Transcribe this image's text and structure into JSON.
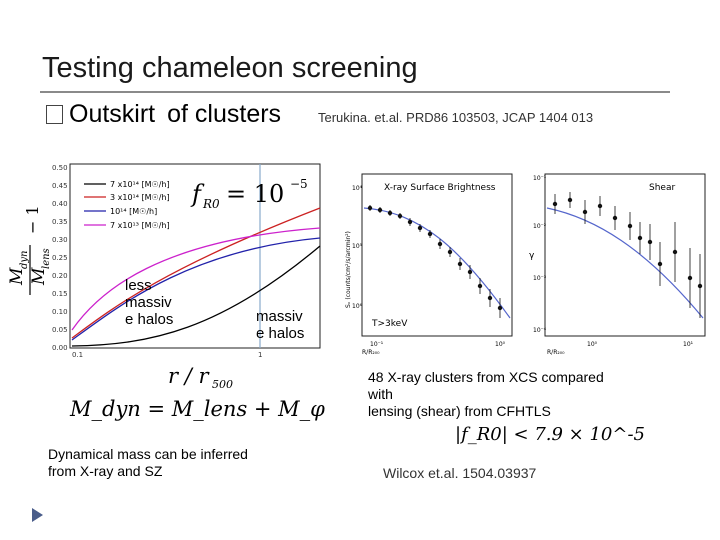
{
  "slide": {
    "title": "Testing chameleon screening",
    "bullet": {
      "word1": "Outskirt",
      "word2": "of clusters"
    },
    "ref_top": "Terukina. et.al.  PRD86 103503,  JCAP 1404 013",
    "note_left": "less\nmassiv\ne halos",
    "note_right": "massiv\ne halos",
    "formula_dyn": "M_dyn = M_lens + M_φ",
    "caption_left_1": "Dynamical mass can be inferred",
    "caption_left_2": "from X-ray and SZ",
    "caption_right_1": "48 X-ray clusters from XCS compared",
    "caption_right_2": "with",
    "caption_right_3": "lensing (shear) from CFHTLS",
    "bound": "|f_R0| < 7.9 × 10^-5",
    "ref_bottom": "Wilcox et.al. 1504.03937"
  },
  "left_plot": {
    "ylabel_num": "M",
    "ylabel_num_sub": "dyn",
    "ylabel_den": "M",
    "ylabel_den_sub": "lens",
    "ylabel_minus": "− 1",
    "xlabel_r": "r / r",
    "xlabel_sub": "500",
    "ytick_labels": [
      "0.50",
      "0.45",
      "0.40",
      "0.35",
      "0.30",
      "0.25",
      "0.20",
      "0.15",
      "0.10",
      "0.05",
      "0.00"
    ],
    "xtick_labels": [
      "0.1",
      "1"
    ],
    "fr0_label": "f",
    "fr0_sub": "R0",
    "fr0_value": "= 10",
    "fr0_exp": "−5",
    "legend": [
      {
        "text": "7 x10¹⁴ [M☉/h]",
        "color": "#000000"
      },
      {
        "text": "3 x10¹⁴ [M☉/h]",
        "color": "#cc2222"
      },
      {
        "text": "10¹⁴ [M☉/h]",
        "color": "#2222aa"
      },
      {
        "text": "7 x10¹³ [M☉/h]",
        "color": "#cc22cc"
      }
    ]
  },
  "xray_panel": {
    "title": "X-ray Surface Brightness",
    "label": "T>3keV",
    "ylabel": "Sₓ (counts/cm²/s/arcmin²)",
    "xlabel": "R/R₂₀₀",
    "ytick_labels": [
      "10⁴",
      "10⁵",
      "10⁶"
    ],
    "xtick_labels": [
      "10⁻¹",
      "10⁰"
    ]
  },
  "shear_panel": {
    "title": "Shear",
    "ylabel": "γ",
    "xlabel": "R/R₂₀₀",
    "ytick_labels": [
      "10⁻¹",
      "10⁻²",
      "10⁻³",
      "10⁻⁴"
    ],
    "xtick_labels": [
      "10⁰",
      "10¹"
    ]
  },
  "colors": {
    "accent_nav": "#4a5d8a",
    "black": "#000000",
    "red": "#cc2222",
    "blue": "#2222aa",
    "magenta": "#cc22cc",
    "fit_blue": "#5566cc"
  }
}
